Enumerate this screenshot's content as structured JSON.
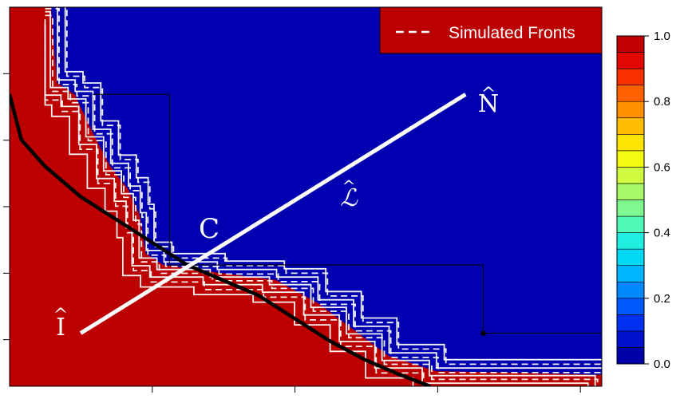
{
  "chart_data": {
    "type": "heatmap",
    "title": "",
    "xlabel": "",
    "ylabel": "",
    "legend": {
      "label": "Simulated Fronts",
      "position": "top-right"
    },
    "colorbar": {
      "range": [
        0.0,
        1.0
      ],
      "tick_labels": [
        "0.0",
        "0.2",
        "0.4",
        "0.6",
        "0.8",
        "1.0"
      ],
      "levels": 20,
      "colors": [
        "#0000a8",
        "#0010cc",
        "#0030f0",
        "#0058ff",
        "#0088ff",
        "#00b4ff",
        "#00d8f4",
        "#20eee0",
        "#50f8b8",
        "#80f890",
        "#a8f868",
        "#d0fa40",
        "#f4fa10",
        "#ffe400",
        "#ffbc00",
        "#ff9000",
        "#ff6000",
        "#f83000",
        "#e00800",
        "#c00000"
      ]
    },
    "colors": {
      "low": "#0000b0",
      "high": "#bc0000",
      "curve": "#000000",
      "line": "#ffffff"
    },
    "annotations": {
      "N": "N",
      "L": "ℒ",
      "I": "I",
      "C": "C",
      "hat": "^"
    },
    "axis_ticks": {
      "x": 4,
      "y": 5
    },
    "front_boundary": [
      [
        0.0,
        0.0
      ],
      [
        0.07,
        0.0
      ],
      [
        0.08,
        0.2
      ],
      [
        0.11,
        0.23
      ],
      [
        0.14,
        0.33
      ],
      [
        0.17,
        0.42
      ],
      [
        0.2,
        0.48
      ],
      [
        0.22,
        0.55
      ],
      [
        0.23,
        0.65
      ],
      [
        0.26,
        0.68
      ],
      [
        0.35,
        0.7
      ],
      [
        0.45,
        0.72
      ],
      [
        0.52,
        0.78
      ],
      [
        0.58,
        0.85
      ],
      [
        0.64,
        0.92
      ],
      [
        0.72,
        0.96
      ],
      [
        1.0,
        0.97
      ],
      [
        1.0,
        1.0
      ],
      [
        0.0,
        1.0
      ]
    ],
    "black_curve": [
      [
        0.0,
        0.23
      ],
      [
        0.02,
        0.35
      ],
      [
        0.06,
        0.42
      ],
      [
        0.12,
        0.5
      ],
      [
        0.18,
        0.56
      ],
      [
        0.24,
        0.62
      ],
      [
        0.3,
        0.68
      ],
      [
        0.36,
        0.72
      ],
      [
        0.42,
        0.76
      ],
      [
        0.48,
        0.82
      ],
      [
        0.54,
        0.88
      ],
      [
        0.6,
        0.93
      ],
      [
        0.66,
        0.97
      ],
      [
        0.71,
        1.0
      ]
    ],
    "diagonal_line": [
      [
        0.12,
        0.86
      ],
      [
        0.77,
        0.23
      ]
    ],
    "threshold_box": [
      [
        0.14,
        0.23
      ],
      [
        0.27,
        0.23
      ],
      [
        0.27,
        0.68
      ],
      [
        0.8,
        0.68
      ],
      [
        0.8,
        0.86
      ],
      [
        1.0,
        0.86
      ]
    ]
  }
}
